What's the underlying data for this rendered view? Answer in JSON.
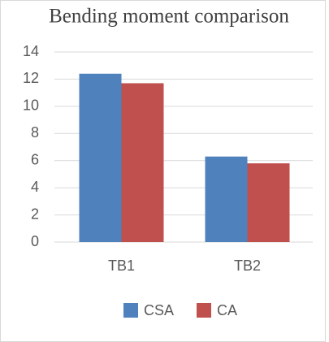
{
  "chart_data": {
    "type": "bar",
    "title": "Bending moment comparison",
    "categories": [
      "TB1",
      "TB2"
    ],
    "series": [
      {
        "name": "CSA",
        "color": "#4f81bd",
        "values": [
          12.4,
          6.3
        ]
      },
      {
        "name": "CA",
        "color": "#c0504d",
        "values": [
          11.7,
          5.8
        ]
      }
    ],
    "ylim": [
      0,
      14
    ],
    "yticks": [
      0,
      2,
      4,
      6,
      8,
      10,
      12,
      14
    ],
    "grid": true,
    "legend": "bottom"
  }
}
